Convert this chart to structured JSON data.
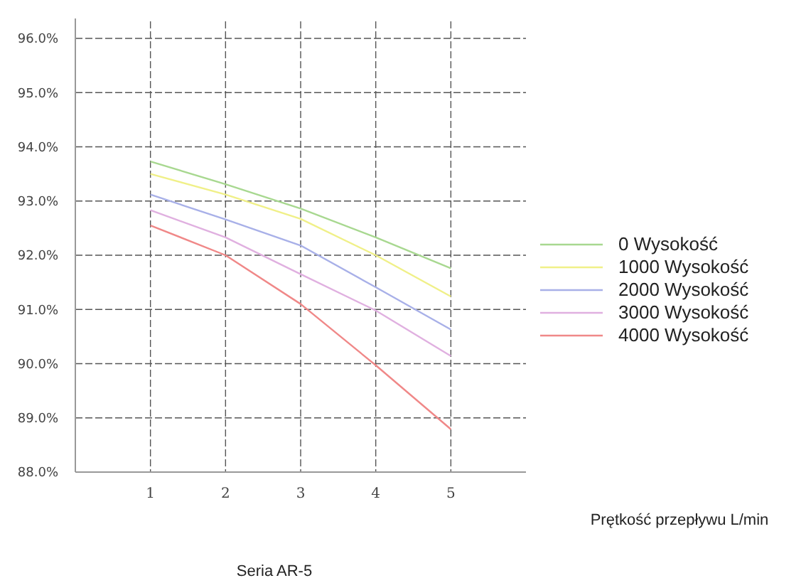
{
  "chart_data": {
    "type": "line",
    "title": "Seria AR-5",
    "xlabel": "Prętkość przepływu L/min",
    "x": [
      1,
      2,
      3,
      4,
      5
    ],
    "xlim": [
      0,
      6
    ],
    "xticks": [
      1,
      2,
      3,
      4,
      5
    ],
    "ylim": [
      88,
      96
    ],
    "yticks": [
      {
        "value": 88,
        "label": "88.0%"
      },
      {
        "value": 89,
        "label": "89.0%"
      },
      {
        "value": 90,
        "label": "90.0%"
      },
      {
        "value": 91,
        "label": "91.0%"
      },
      {
        "value": 92,
        "label": "92.0%"
      },
      {
        "value": 93,
        "label": "93.0%"
      },
      {
        "value": 94,
        "label": "94.0%"
      },
      {
        "value": 95,
        "label": "95.0%"
      },
      {
        "value": 96,
        "label": "96.0%"
      }
    ],
    "grid": true,
    "legend": "right",
    "marker": "none",
    "line_style": "solid",
    "series": [
      {
        "name": "0 Wysokość",
        "color": "#a8d890",
        "values": [
          93.73,
          93.31,
          92.86,
          92.33,
          91.76
        ]
      },
      {
        "name": "1000 Wysokość",
        "color": "#f0f088",
        "values": [
          93.5,
          93.12,
          92.67,
          92.0,
          91.24
        ]
      },
      {
        "name": "2000 Wysokość",
        "color": "#a8b0e8",
        "values": [
          93.12,
          92.66,
          92.18,
          91.41,
          90.63
        ]
      },
      {
        "name": "3000 Wysokość",
        "color": "#e0b0e0",
        "values": [
          92.83,
          92.33,
          91.65,
          90.98,
          90.14
        ]
      },
      {
        "name": "4000 Wysokość",
        "color": "#f08888",
        "values": [
          92.55,
          92.0,
          91.1,
          89.97,
          88.79
        ]
      }
    ]
  }
}
